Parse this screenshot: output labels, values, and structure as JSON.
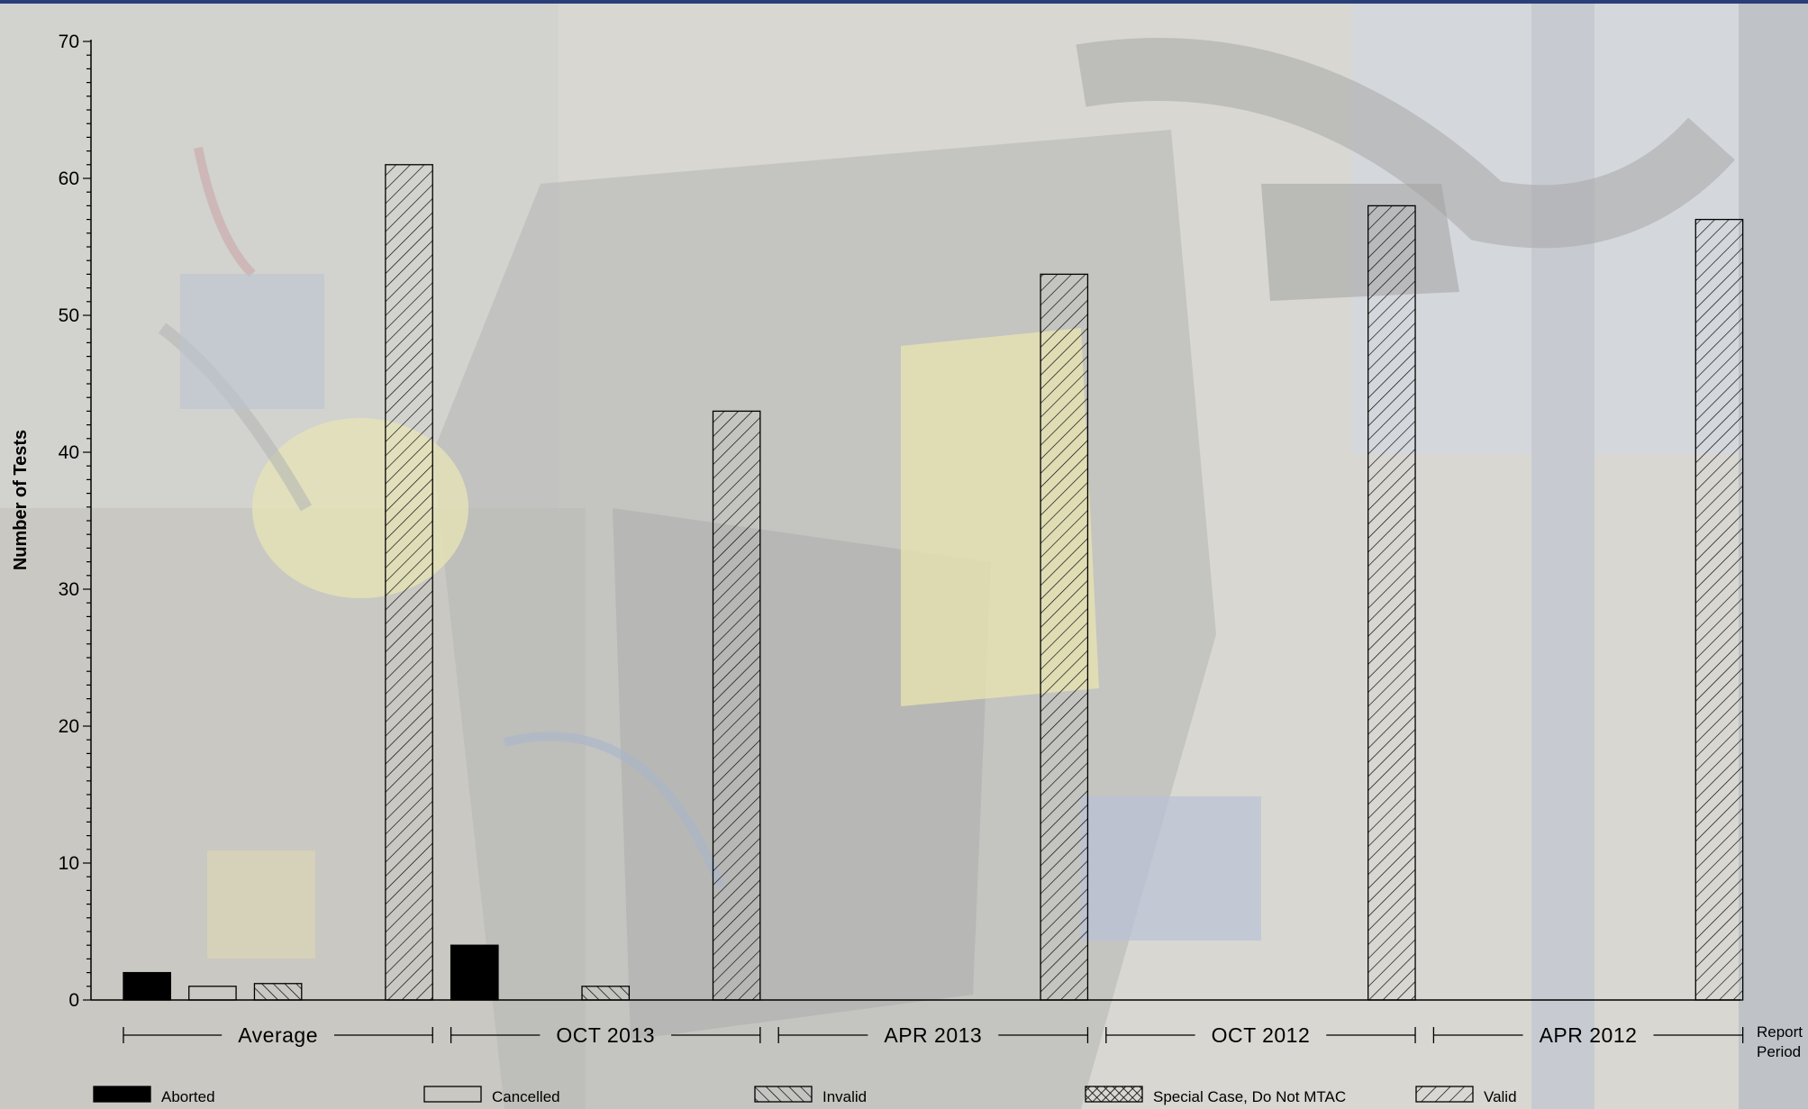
{
  "chart_data": {
    "type": "bar",
    "ylabel": "Number of Tests",
    "xlabel": "Report Period",
    "xlabel_lines": [
      "Report",
      "Period"
    ],
    "ylim": [
      0,
      70
    ],
    "yticks": [
      0,
      10,
      20,
      30,
      40,
      50,
      60,
      70
    ],
    "grid": false,
    "legend_position": "bottom",
    "categories": [
      "Average",
      "OCT 2013",
      "APR 2013",
      "OCT 2012",
      "APR 2012"
    ],
    "series": [
      {
        "name": "Aborted",
        "pattern": "solid",
        "values": [
          2,
          4,
          0,
          0,
          0
        ]
      },
      {
        "name": "Cancelled",
        "pattern": "empty",
        "values": [
          1,
          0,
          0,
          0,
          0
        ]
      },
      {
        "name": "Invalid",
        "pattern": "backslash",
        "values": [
          1.2,
          1,
          0,
          0,
          0
        ]
      },
      {
        "name": "Special Case, Do Not MTAC",
        "pattern": "crosshatch",
        "values": [
          0,
          0,
          0,
          0,
          0
        ]
      },
      {
        "name": "Valid",
        "pattern": "slash",
        "values": [
          61,
          43,
          53,
          58,
          57
        ]
      }
    ],
    "colors": {
      "bar_stroke": "#000000",
      "bar_fill": "#000000",
      "header_band": "#2a3f7a"
    }
  }
}
